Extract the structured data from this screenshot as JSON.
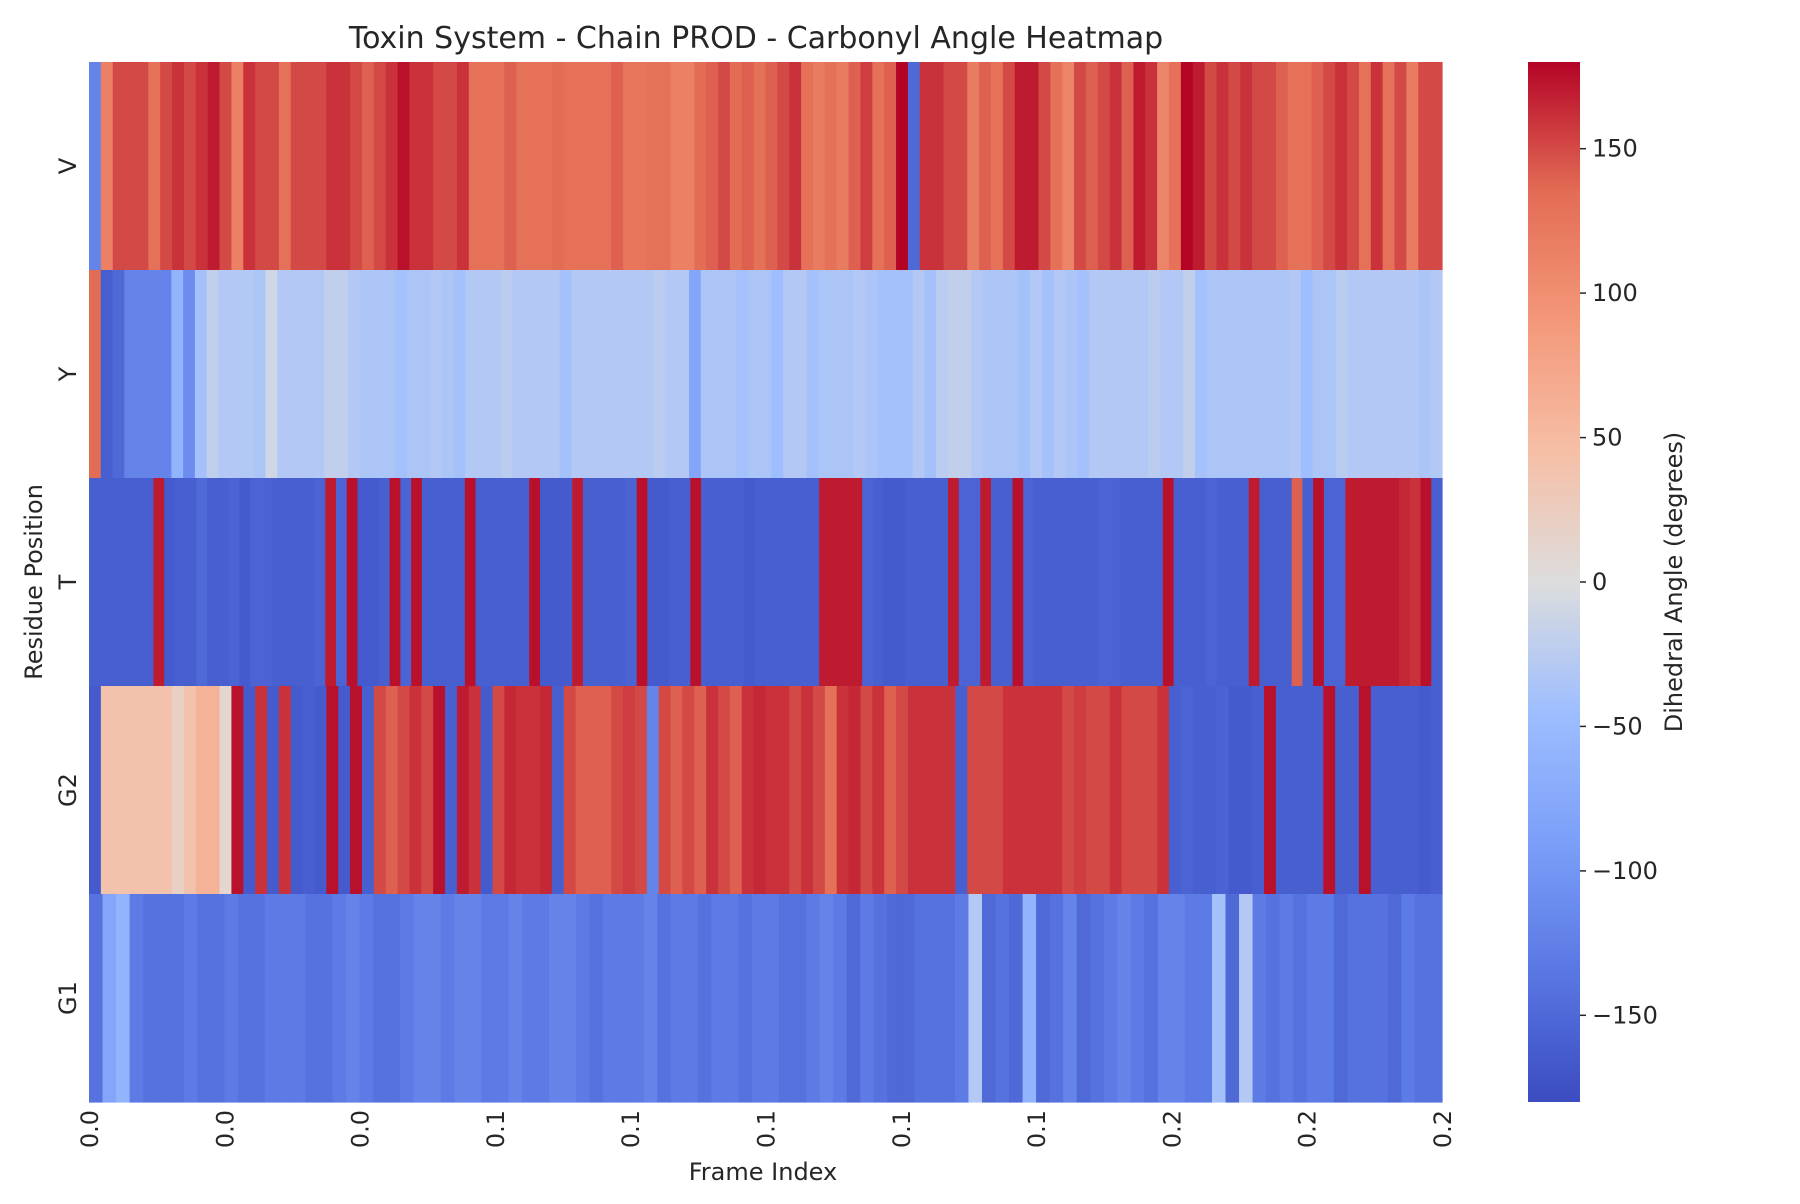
{
  "chart_data": {
    "type": "heatmap",
    "title": "Toxin System - Chain PROD - Carbonyl Angle Heatmap",
    "xlabel": "Frame Index",
    "ylabel": "Residue Position",
    "x_tick_labels": [
      "0.0",
      "0.0",
      "0.0",
      "0.1",
      "0.1",
      "0.1",
      "0.1",
      "0.1",
      "0.2",
      "0.2",
      "0.2"
    ],
    "rows": [
      "V",
      "Y",
      "T",
      "G2",
      "G1"
    ],
    "colormap": "coolwarm",
    "colorbar": {
      "label": "Dihedral Angle (degrees)",
      "range": [
        -180,
        180
      ],
      "ticks": [
        -150,
        -100,
        -50,
        0,
        50,
        100,
        150
      ],
      "tick_labels": [
        "−150",
        "−100",
        "−50",
        "0",
        "50",
        "100",
        "150"
      ],
      "low_color": "#3b4cc0",
      "mid_color": "#dddddd",
      "high_color": "#b40426"
    },
    "values": [
      [
        -120,
        115,
        150,
        150,
        150,
        130,
        150,
        160,
        150,
        160,
        170,
        150,
        115,
        160,
        150,
        150,
        130,
        150,
        150,
        150,
        160,
        160,
        150,
        140,
        150,
        160,
        175,
        160,
        160,
        150,
        150,
        160,
        130,
        130,
        130,
        140,
        130,
        130,
        130,
        135,
        130,
        130,
        130,
        130,
        140,
        125,
        125,
        130,
        130,
        115,
        115,
        135,
        140,
        150,
        135,
        140,
        130,
        140,
        150,
        160,
        130,
        120,
        130,
        120,
        140,
        155,
        130,
        140,
        180,
        -150,
        160,
        160,
        150,
        150,
        120,
        140,
        130,
        150,
        170,
        170,
        150,
        130,
        110,
        150,
        140,
        150,
        160,
        140,
        170,
        160,
        110,
        130,
        180,
        170,
        150,
        160,
        150,
        160,
        150,
        150,
        140,
        130,
        130,
        140,
        150,
        160,
        150,
        130,
        160,
        130,
        150,
        120,
        150,
        150
      ],
      [
        135,
        -160,
        -150,
        -120,
        -120,
        -120,
        -120,
        -60,
        -110,
        -40,
        -20,
        -30,
        -30,
        -30,
        -35,
        -10,
        -30,
        -30,
        -30,
        -30,
        -20,
        -20,
        -30,
        -35,
        -35,
        -35,
        -40,
        -35,
        -35,
        -30,
        -35,
        -40,
        -30,
        -30,
        -30,
        -25,
        -30,
        -30,
        -30,
        -30,
        -40,
        -30,
        -30,
        -30,
        -30,
        -30,
        -30,
        -30,
        -25,
        -30,
        -30,
        -80,
        -35,
        -35,
        -35,
        -40,
        -35,
        -35,
        -45,
        -30,
        -30,
        -40,
        -35,
        -35,
        -35,
        -30,
        -35,
        -40,
        -40,
        -40,
        -30,
        -40,
        -25,
        -20,
        -20,
        -30,
        -35,
        -35,
        -35,
        -40,
        -30,
        -40,
        -30,
        -35,
        -40,
        -30,
        -30,
        -30,
        -30,
        -30,
        -25,
        -30,
        -30,
        -20,
        -40,
        -35,
        -35,
        -35,
        -35,
        -35,
        -35,
        -35,
        -30,
        -45,
        -35,
        -35,
        -25,
        -30,
        -30,
        -30,
        -30,
        -30,
        -30,
        -35,
        -30
      ],
      [
        -160,
        -160,
        -160,
        -160,
        -160,
        -160,
        170,
        -165,
        -160,
        -160,
        -150,
        -160,
        -160,
        -155,
        -165,
        -155,
        -155,
        -160,
        -160,
        -160,
        -160,
        -155,
        170,
        -155,
        175,
        -165,
        -165,
        -160,
        175,
        -155,
        175,
        -160,
        -160,
        -160,
        -160,
        175,
        -160,
        -160,
        -160,
        -160,
        -160,
        175,
        -165,
        -165,
        -165,
        170,
        -160,
        -160,
        -160,
        -160,
        -155,
        175,
        -165,
        -165,
        -160,
        -160,
        175,
        -160,
        -160,
        -160,
        -160,
        -165,
        -160,
        -160,
        -160,
        -160,
        -160,
        -160,
        170,
        170,
        170,
        170,
        -155,
        -160,
        -165,
        -165,
        -160,
        -160,
        -160,
        -160,
        170,
        -155,
        -155,
        170,
        -160,
        -160,
        175,
        -155,
        -160,
        -160,
        -160,
        -160,
        -160,
        -160,
        -155,
        -155,
        -160,
        -160,
        -160,
        -160,
        175,
        -160,
        -160,
        -160,
        -155,
        -160,
        -160,
        -160,
        170,
        -160,
        -160,
        -160,
        140,
        -160,
        175,
        -155,
        -155,
        170,
        170,
        170,
        170,
        170,
        165,
        160,
        175,
        -160
      ],
      [
        -165,
        40,
        40,
        40,
        40,
        40,
        40,
        20,
        40,
        60,
        60,
        10,
        175,
        -165,
        160,
        -165,
        160,
        -165,
        -160,
        -165,
        175,
        -165,
        175,
        -160,
        150,
        140,
        150,
        160,
        150,
        175,
        -160,
        170,
        160,
        -165,
        150,
        165,
        160,
        160,
        165,
        -160,
        150,
        140,
        140,
        140,
        150,
        155,
        150,
        -120,
        150,
        140,
        150,
        140,
        160,
        150,
        140,
        160,
        165,
        160,
        160,
        150,
        160,
        150,
        130,
        160,
        165,
        150,
        160,
        140,
        150,
        160,
        160,
        160,
        160,
        -160,
        150,
        150,
        150,
        160,
        160,
        160,
        160,
        160,
        150,
        155,
        150,
        150,
        160,
        150,
        150,
        150,
        160,
        -160,
        -155,
        -160,
        -160,
        -155,
        -165,
        -165,
        -160,
        175,
        -160,
        -160,
        -160,
        -160,
        175,
        -160,
        -160,
        175,
        -160,
        -160,
        -160,
        -160,
        -165,
        -160
      ],
      [
        -140,
        -80,
        -60,
        -130,
        -140,
        -140,
        -140,
        -130,
        -140,
        -140,
        -130,
        -140,
        -140,
        -130,
        -130,
        -130,
        -140,
        -140,
        -130,
        -120,
        -130,
        -140,
        -140,
        -130,
        -120,
        -120,
        -130,
        -120,
        -120,
        -130,
        -130,
        -120,
        -130,
        -130,
        -120,
        -120,
        -130,
        -140,
        -130,
        -130,
        -130,
        -120,
        -140,
        -130,
        -130,
        -140,
        -130,
        -130,
        -140,
        -130,
        -130,
        -140,
        -140,
        -130,
        -120,
        -130,
        -150,
        -130,
        -140,
        -150,
        -150,
        -140,
        -140,
        -140,
        -130,
        -30,
        -150,
        -140,
        -150,
        -60,
        -150,
        -140,
        -120,
        -150,
        -140,
        -130,
        -120,
        -130,
        -140,
        -120,
        -120,
        -130,
        -130,
        -40,
        -150,
        -30,
        -130,
        -140,
        -130,
        -140,
        -130,
        -130,
        -150,
        -140,
        -140,
        -140,
        -150,
        -130,
        -140,
        -140
      ]
    ]
  }
}
